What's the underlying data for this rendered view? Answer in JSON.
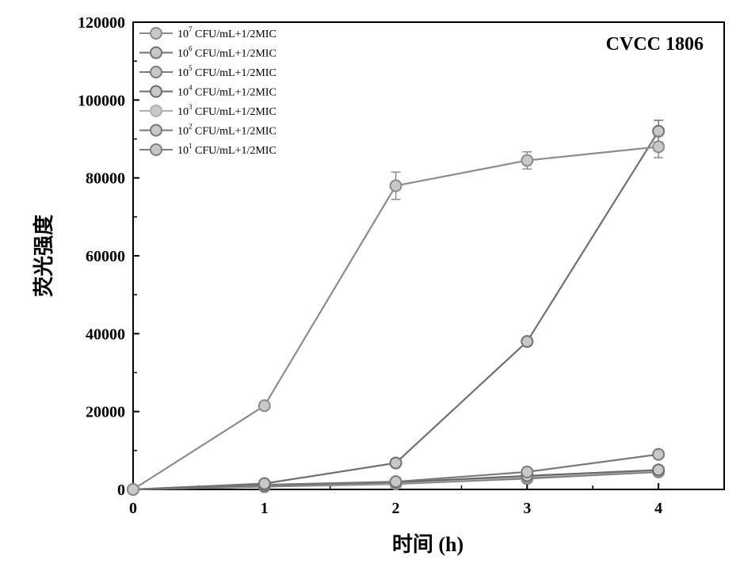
{
  "chart_data": {
    "type": "line",
    "title": "CVCC 1806",
    "xlabel": "时间 (h)",
    "ylabel": "荧光强度",
    "x": [
      0,
      1,
      2,
      3,
      4
    ],
    "xlim": [
      0,
      4.5
    ],
    "ylim": [
      0,
      120000
    ],
    "xticks": [
      "0",
      "1",
      "2",
      "3",
      "4"
    ],
    "yticks": [
      "0",
      "20000",
      "40000",
      "60000",
      "80000",
      "100000",
      "120000"
    ],
    "legend_position": "top-left",
    "series": [
      {
        "name": "10^7 CFU/mL+1/2MIC",
        "base": "10",
        "exp": "7",
        "suffix": " CFU/mL+1/2MIC",
        "color": "#8c8c8c",
        "values": [
          0,
          21500,
          78000,
          84500,
          88000
        ],
        "errors": [
          0,
          0,
          3500,
          2200,
          2800
        ]
      },
      {
        "name": "10^6 CFU/mL+1/2MIC",
        "base": "10",
        "exp": "6",
        "suffix": " CFU/mL+1/2MIC",
        "color": "#707070",
        "values": [
          0,
          1500,
          6800,
          38000,
          92000
        ],
        "errors": [
          0,
          0,
          0,
          0,
          2800
        ]
      },
      {
        "name": "10^5 CFU/mL+1/2MIC",
        "base": "10",
        "exp": "5",
        "suffix": " CFU/mL+1/2MIC",
        "color": "#7a7a7a",
        "values": [
          0,
          1200,
          2000,
          4500,
          9000
        ],
        "errors": [
          0,
          0,
          0,
          0,
          0
        ]
      },
      {
        "name": "10^4 CFU/mL+1/2MIC",
        "base": "10",
        "exp": "4",
        "suffix": " CFU/mL+1/2MIC",
        "color": "#6a6a6a",
        "values": [
          0,
          1000,
          1800,
          3500,
          5000
        ],
        "errors": [
          0,
          0,
          0,
          0,
          0
        ]
      },
      {
        "name": "10^3 CFU/mL+1/2MIC",
        "base": "10",
        "exp": "3",
        "suffix": " CFU/mL+1/2MIC",
        "color": "#b0b0b0",
        "values": [
          0,
          900,
          1600,
          3200,
          4800
        ],
        "errors": [
          0,
          0,
          0,
          0,
          0
        ]
      },
      {
        "name": "10^2 CFU/mL+1/2MIC",
        "base": "10",
        "exp": "2",
        "suffix": " CFU/mL+1/2MIC",
        "color": "#787878",
        "values": [
          0,
          800,
          1500,
          3000,
          4600
        ],
        "errors": [
          0,
          0,
          0,
          0,
          0
        ]
      },
      {
        "name": "10^1 CFU/mL+1/2MIC",
        "base": "10",
        "exp": "1",
        "suffix": " CFU/mL+1/2MIC",
        "color": "#7e7e7e",
        "values": [
          0,
          700,
          1400,
          2800,
          4500
        ],
        "errors": [
          0,
          0,
          0,
          0,
          0
        ]
      }
    ]
  }
}
